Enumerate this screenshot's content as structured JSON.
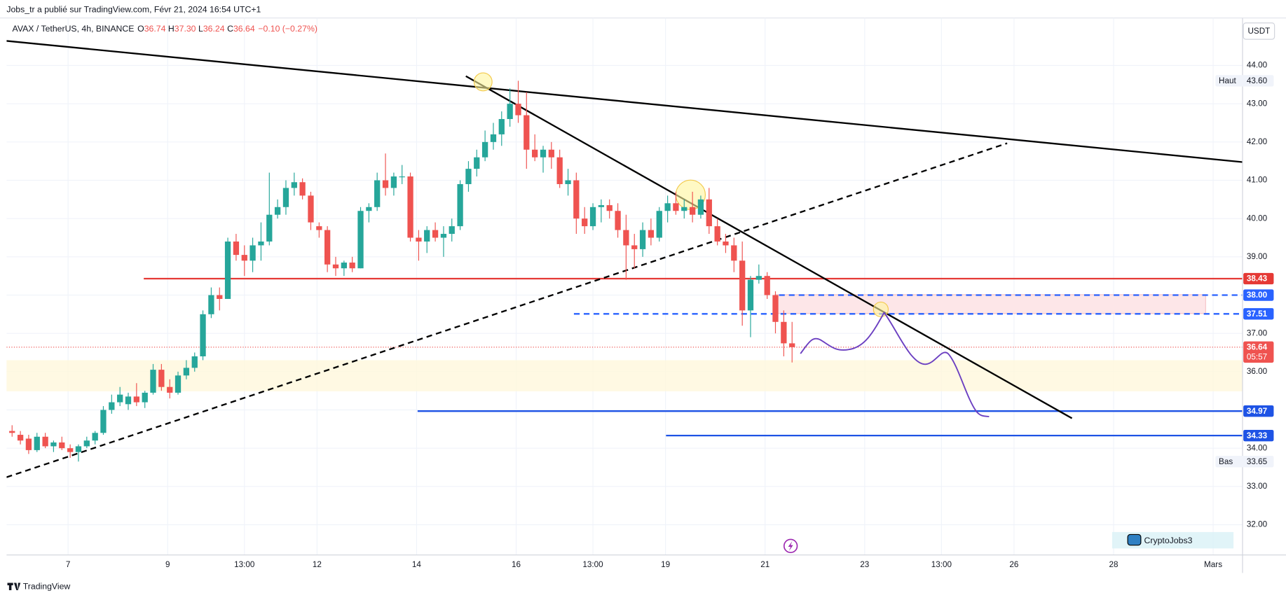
{
  "header": {
    "publisher": "Jobs_tr a publié sur TradingView.com, Févr 21, 2024 16:54 UTC+1"
  },
  "chart_data": {
    "type": "candlestick",
    "symbol": "AVAX / TetherUS, 4h, BINANCE",
    "legend": {
      "o_label": "O",
      "o": "36.74",
      "h_label": "H",
      "h": "37.30",
      "l_label": "L",
      "l": "36.24",
      "c_label": "C",
      "c": "36.64",
      "change": "−0.10 (−0.27%)"
    },
    "currency": "USDT",
    "x": [
      5.875,
      6.042,
      6.208,
      6.375,
      6.542,
      6.708,
      6.875,
      7.042,
      7.208,
      7.375,
      7.542,
      7.708,
      7.875,
      8.042,
      8.208,
      8.375,
      8.542,
      8.708,
      8.875,
      9.042,
      9.208,
      9.375,
      9.542,
      9.708,
      9.875,
      10.042,
      10.208,
      10.375,
      10.542,
      10.708,
      10.875,
      11.042,
      11.208,
      11.375,
      11.542,
      11.708,
      11.875,
      12.042,
      12.208,
      12.375,
      12.542,
      12.708,
      12.875,
      13.042,
      13.208,
      13.375,
      13.542,
      13.708,
      13.875,
      14.042,
      14.208,
      14.375,
      14.542,
      14.708,
      14.875,
      15.042,
      15.208,
      15.375,
      15.542,
      15.708,
      15.875,
      16.042,
      16.208,
      16.375,
      16.542,
      16.708,
      16.875,
      17.042,
      17.208,
      17.375,
      17.542,
      17.708,
      17.875,
      18.042,
      18.208,
      18.375,
      18.542,
      18.708,
      18.875,
      19.042,
      19.208,
      19.375,
      19.542,
      19.708,
      19.875,
      20.042,
      20.208,
      20.375,
      20.542,
      20.708,
      20.875,
      21.042,
      21.208,
      21.375,
      21.542
    ],
    "open": [
      34.45,
      34.35,
      34.25,
      33.95,
      34.3,
      34.05,
      34.15,
      34.0,
      33.9,
      34.05,
      34.2,
      34.4,
      35.0,
      35.2,
      35.15,
      35.35,
      35.2,
      35.45,
      36.05,
      35.6,
      35.45,
      35.9,
      36.1,
      36.4,
      37.5,
      38.0,
      37.9,
      39.4,
      39.05,
      38.9,
      39.3,
      39.4,
      40.1,
      40.3,
      40.8,
      40.95,
      40.6,
      39.8,
      39.7,
      38.8,
      38.7,
      38.85,
      38.7,
      40.2,
      40.3,
      41.0,
      40.8,
      41.1,
      41.1,
      39.5,
      39.4,
      39.7,
      39.5,
      39.6,
      39.8,
      40.9,
      41.3,
      41.6,
      42.0,
      42.2,
      42.6,
      43.0,
      42.7,
      41.8,
      41.6,
      41.8,
      41.6,
      40.9,
      41.0,
      40.0,
      39.8,
      40.3,
      40.35,
      40.2,
      39.7,
      39.3,
      39.2,
      39.7,
      39.5,
      40.2,
      40.4,
      40.2,
      40.3,
      40.1,
      40.5,
      39.8,
      39.4,
      39.3,
      38.9,
      37.6,
      38.4,
      38.5,
      38.0,
      37.3,
      36.74
    ],
    "high": [
      34.6,
      34.45,
      34.35,
      34.4,
      34.4,
      34.2,
      34.3,
      34.1,
      34.1,
      34.3,
      34.45,
      35.1,
      35.4,
      35.6,
      35.45,
      35.7,
      35.5,
      36.2,
      36.2,
      35.8,
      36.0,
      36.3,
      36.5,
      37.6,
      38.2,
      38.2,
      39.5,
      39.6,
      39.3,
      39.5,
      39.9,
      41.2,
      40.5,
      41.0,
      41.2,
      41.05,
      40.7,
      39.9,
      39.8,
      39.0,
      38.9,
      39.0,
      40.3,
      40.4,
      41.2,
      41.7,
      41.2,
      41.4,
      41.2,
      39.7,
      39.8,
      39.9,
      39.8,
      40.0,
      41.0,
      41.5,
      41.8,
      42.3,
      42.5,
      42.8,
      43.4,
      43.6,
      43.3,
      42.2,
      41.9,
      42.0,
      41.8,
      41.3,
      41.2,
      40.3,
      40.4,
      40.5,
      40.5,
      40.4,
      40.1,
      39.6,
      39.9,
      40.0,
      40.3,
      40.6,
      40.7,
      40.5,
      40.7,
      40.6,
      40.8,
      40.0,
      39.6,
      39.5,
      39.4,
      38.5,
      38.8,
      38.6,
      38.1,
      37.6,
      37.3
    ],
    "low": [
      34.3,
      34.1,
      33.85,
      33.9,
      34.0,
      33.9,
      33.95,
      33.75,
      33.65,
      34.0,
      34.1,
      34.35,
      34.9,
      35.1,
      35.0,
      35.1,
      35.05,
      35.4,
      35.5,
      35.3,
      35.4,
      35.8,
      36.0,
      36.3,
      37.4,
      37.6,
      37.9,
      38.9,
      38.5,
      38.6,
      38.9,
      39.3,
      40.0,
      40.1,
      40.6,
      40.5,
      39.7,
      39.5,
      38.6,
      38.5,
      38.5,
      38.6,
      38.7,
      39.9,
      40.2,
      40.6,
      40.6,
      40.9,
      39.4,
      38.9,
      39.1,
      39.4,
      39.0,
      39.4,
      39.7,
      40.7,
      41.1,
      41.5,
      41.8,
      41.9,
      42.4,
      42.5,
      41.3,
      41.5,
      41.2,
      41.3,
      40.8,
      40.6,
      39.6,
      39.6,
      39.7,
      39.9,
      40.0,
      39.5,
      38.4,
      38.7,
      39.0,
      39.3,
      39.4,
      39.9,
      40.1,
      40.0,
      39.9,
      40.0,
      39.6,
      39.3,
      39.1,
      38.6,
      37.2,
      36.9,
      38.3,
      37.9,
      37.0,
      36.4,
      36.24
    ],
    "close": [
      34.4,
      34.2,
      33.95,
      34.3,
      34.05,
      34.15,
      34.0,
      33.9,
      34.05,
      34.2,
      34.4,
      35.0,
      35.2,
      35.4,
      35.35,
      35.2,
      35.45,
      36.05,
      35.6,
      35.45,
      35.9,
      36.1,
      36.4,
      37.5,
      38.0,
      37.9,
      39.4,
      39.05,
      38.9,
      39.3,
      39.4,
      40.1,
      40.3,
      40.8,
      40.95,
      40.6,
      39.9,
      39.7,
      38.8,
      38.7,
      38.85,
      38.7,
      40.2,
      40.3,
      41.0,
      40.8,
      41.1,
      41.1,
      39.5,
      39.4,
      39.7,
      39.5,
      39.6,
      39.8,
      40.9,
      41.3,
      41.6,
      42.0,
      42.2,
      42.6,
      43.0,
      42.7,
      41.8,
      41.6,
      41.8,
      41.6,
      40.9,
      41.0,
      40.0,
      39.8,
      40.3,
      40.35,
      40.2,
      39.7,
      39.3,
      39.2,
      39.7,
      39.5,
      40.2,
      40.4,
      40.2,
      40.3,
      40.1,
      40.5,
      39.8,
      39.4,
      39.3,
      38.9,
      37.6,
      38.4,
      38.5,
      38.0,
      37.3,
      36.74,
      36.64
    ],
    "up_color": "#26a69a",
    "down_color": "#ef5350",
    "xlim": [
      5.764,
      30.59
    ],
    "xticks": [
      7,
      9,
      {
        "value": 10.542,
        "label": "13:00"
      },
      12,
      14,
      16,
      {
        "value": 17.542,
        "label": "13:00"
      },
      19,
      21,
      23,
      {
        "value": 24.542,
        "label": "13:00"
      },
      26,
      28,
      {
        "value": 30,
        "label": "Mars"
      }
    ],
    "ylim": [
      31.21,
      45.24
    ],
    "yticks": [
      {
        "value": 32,
        "label": "32.00"
      },
      {
        "value": 33,
        "label": "33.00"
      },
      {
        "value": 34,
        "label": "34.00"
      },
      {
        "value": 35,
        "label": "35.00"
      },
      {
        "value": 36,
        "label": "36.00"
      },
      {
        "value": 37,
        "label": "37.00"
      },
      {
        "value": 38,
        "label": "38.00"
      },
      {
        "value": 39,
        "label": "39.00"
      },
      {
        "value": 40,
        "label": "40.00"
      },
      {
        "value": 41,
        "label": "41.00"
      },
      {
        "value": 42,
        "label": "42.00"
      },
      {
        "value": 43,
        "label": "43.00"
      },
      {
        "value": 44,
        "label": "44.00"
      }
    ],
    "grid": true,
    "levels": [
      {
        "price": 38.43,
        "from": 8.52,
        "color": "#e53935",
        "dash": false
      },
      {
        "price": {
          "value": 38,
          "label": "38.00"
        },
        "from": 21.28,
        "color": "#2962ff",
        "dash": true
      },
      {
        "price": 37.51,
        "from": 17.16,
        "color": "#2962ff",
        "dash": true
      },
      {
        "price": 34.97,
        "from": 14.02,
        "color": "#1e53e5",
        "dash": false
      },
      {
        "price": 34.33,
        "from": 19.01,
        "color": "#1e53e5",
        "dash": false
      }
    ],
    "last_price": 36.64,
    "countdown": "05:57",
    "high_marker": {
      "text": "Haut",
      "price": {
        "value": 43.6,
        "label": "43.60"
      }
    },
    "low_marker": {
      "text": "Bas",
      "price": 33.65
    }
  },
  "watermark": "CryptoJobs3",
  "footer": "TradingView"
}
